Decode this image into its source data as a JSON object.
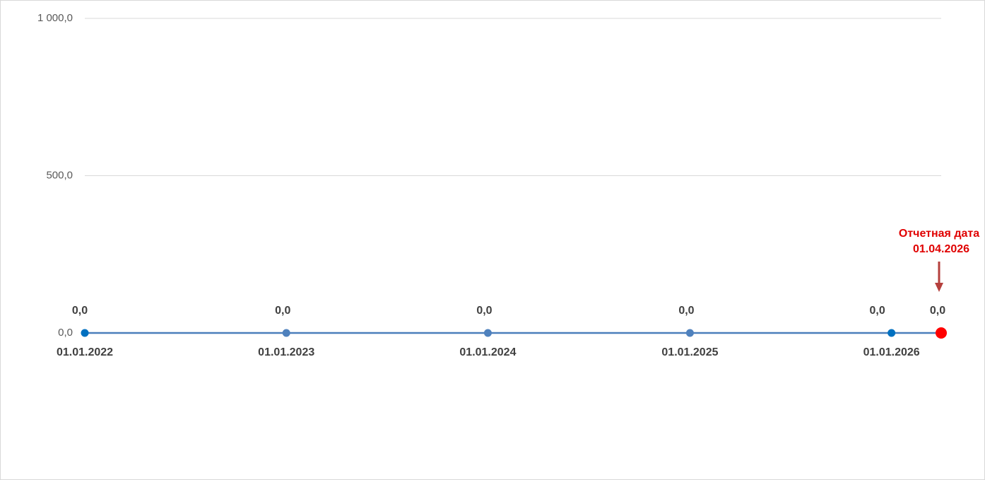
{
  "chart_data": {
    "type": "line",
    "x": [
      "01.01.2022",
      "01.01.2023",
      "01.01.2024",
      "01.01.2025",
      "01.01.2026",
      "01.04.2026"
    ],
    "series": [
      {
        "color": "#4a7ebb",
        "values": [
          0,
          0,
          0,
          0,
          0,
          0
        ],
        "value_labels": [
          "0,0",
          "0,0",
          "0,0",
          "0,0",
          "0,0",
          "0,0"
        ],
        "point_colors": [
          "#0070c0",
          "#4f81bd",
          "#4f81bd",
          "#4f81bd",
          "#0070c0",
          "#ff0000"
        ]
      }
    ],
    "ylim": [
      0,
      1000
    ],
    "yticks": [
      {
        "value": 0,
        "label": "0,0"
      },
      {
        "value": 500,
        "label": "500,0"
      },
      {
        "value": 1000,
        "label": "1 000,0"
      }
    ],
    "grid": true,
    "annotation": {
      "text": "Отчетная дата",
      "x": "01.04.2026",
      "color": "#e00000",
      "arrow_color": "#b5403d"
    }
  }
}
